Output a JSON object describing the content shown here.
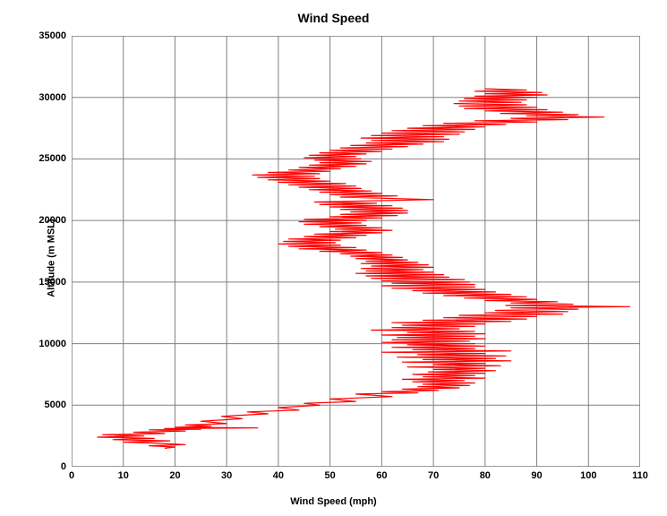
{
  "chart": {
    "type": "line",
    "title": "Wind Speed",
    "title_fontsize": 14,
    "xlabel": "Wind Speed (mph)",
    "ylabel": "Altitude (m MSL)",
    "label_fontsize": 11,
    "tick_fontsize": 11,
    "tick_fontweight": "bold",
    "line_color": "#ff0000",
    "line_width": 1.2,
    "background_color": "#ffffff",
    "plot_border_color": "#808080",
    "plot_border_width": 1.6,
    "grid_color": "#808080",
    "grid_width": 1,
    "xlim": [
      0,
      110
    ],
    "ylim": [
      0,
      35000
    ],
    "xticks": [
      0,
      10,
      20,
      30,
      40,
      50,
      60,
      70,
      80,
      90,
      100,
      110
    ],
    "yticks": [
      0,
      5000,
      10000,
      15000,
      20000,
      25000,
      30000,
      35000
    ],
    "series": [
      {
        "x": 18,
        "y": 1500
      },
      {
        "x": 20,
        "y": 1600
      },
      {
        "x": 15,
        "y": 1700
      },
      {
        "x": 22,
        "y": 1800
      },
      {
        "x": 17,
        "y": 1900
      },
      {
        "x": 10,
        "y": 2000
      },
      {
        "x": 19,
        "y": 2100
      },
      {
        "x": 8,
        "y": 2200
      },
      {
        "x": 16,
        "y": 2300
      },
      {
        "x": 5,
        "y": 2400
      },
      {
        "x": 14,
        "y": 2500
      },
      {
        "x": 6,
        "y": 2600
      },
      {
        "x": 18,
        "y": 2700
      },
      {
        "x": 12,
        "y": 2800
      },
      {
        "x": 22,
        "y": 2900
      },
      {
        "x": 15,
        "y": 3000
      },
      {
        "x": 25,
        "y": 3050
      },
      {
        "x": 18,
        "y": 3100
      },
      {
        "x": 36,
        "y": 3150
      },
      {
        "x": 20,
        "y": 3200
      },
      {
        "x": 27,
        "y": 3300
      },
      {
        "x": 22,
        "y": 3400
      },
      {
        "x": 30,
        "y": 3500
      },
      {
        "x": 25,
        "y": 3700
      },
      {
        "x": 33,
        "y": 3900
      },
      {
        "x": 29,
        "y": 4100
      },
      {
        "x": 38,
        "y": 4300
      },
      {
        "x": 34,
        "y": 4450
      },
      {
        "x": 44,
        "y": 4600
      },
      {
        "x": 40,
        "y": 4800
      },
      {
        "x": 48,
        "y": 5000
      },
      {
        "x": 45,
        "y": 5150
      },
      {
        "x": 55,
        "y": 5300
      },
      {
        "x": 50,
        "y": 5500
      },
      {
        "x": 62,
        "y": 5700
      },
      {
        "x": 55,
        "y": 5900
      },
      {
        "x": 67,
        "y": 6000
      },
      {
        "x": 60,
        "y": 6100
      },
      {
        "x": 71,
        "y": 6200
      },
      {
        "x": 64,
        "y": 6300
      },
      {
        "x": 75,
        "y": 6400
      },
      {
        "x": 67,
        "y": 6500
      },
      {
        "x": 77,
        "y": 6600
      },
      {
        "x": 68,
        "y": 6700
      },
      {
        "x": 78,
        "y": 6800
      },
      {
        "x": 66,
        "y": 6900
      },
      {
        "x": 76,
        "y": 7000
      },
      {
        "x": 64,
        "y": 7100
      },
      {
        "x": 80,
        "y": 7200
      },
      {
        "x": 68,
        "y": 7300
      },
      {
        "x": 78,
        "y": 7400
      },
      {
        "x": 66,
        "y": 7500
      },
      {
        "x": 80,
        "y": 7600
      },
      {
        "x": 69,
        "y": 7700
      },
      {
        "x": 82,
        "y": 7800
      },
      {
        "x": 70,
        "y": 7900
      },
      {
        "x": 80,
        "y": 8000
      },
      {
        "x": 65,
        "y": 8100
      },
      {
        "x": 83,
        "y": 8200
      },
      {
        "x": 70,
        "y": 8300
      },
      {
        "x": 80,
        "y": 8400
      },
      {
        "x": 64,
        "y": 8500
      },
      {
        "x": 85,
        "y": 8600
      },
      {
        "x": 68,
        "y": 8700
      },
      {
        "x": 82,
        "y": 8800
      },
      {
        "x": 63,
        "y": 8900
      },
      {
        "x": 84,
        "y": 9000
      },
      {
        "x": 67,
        "y": 9100
      },
      {
        "x": 80,
        "y": 9200
      },
      {
        "x": 60,
        "y": 9300
      },
      {
        "x": 85,
        "y": 9400
      },
      {
        "x": 66,
        "y": 9500
      },
      {
        "x": 78,
        "y": 9600
      },
      {
        "x": 62,
        "y": 9700
      },
      {
        "x": 80,
        "y": 9800
      },
      {
        "x": 65,
        "y": 9900
      },
      {
        "x": 78,
        "y": 10000
      },
      {
        "x": 60,
        "y": 10100
      },
      {
        "x": 77,
        "y": 10200
      },
      {
        "x": 62,
        "y": 10300
      },
      {
        "x": 80,
        "y": 10400
      },
      {
        "x": 63,
        "y": 10500
      },
      {
        "x": 78,
        "y": 10600
      },
      {
        "x": 60,
        "y": 10700
      },
      {
        "x": 80,
        "y": 10800
      },
      {
        "x": 65,
        "y": 10900
      },
      {
        "x": 78,
        "y": 11000
      },
      {
        "x": 58,
        "y": 11100
      },
      {
        "x": 75,
        "y": 11200
      },
      {
        "x": 62,
        "y": 11300
      },
      {
        "x": 78,
        "y": 11400
      },
      {
        "x": 64,
        "y": 11500
      },
      {
        "x": 80,
        "y": 11600
      },
      {
        "x": 62,
        "y": 11700
      },
      {
        "x": 85,
        "y": 11800
      },
      {
        "x": 68,
        "y": 11900
      },
      {
        "x": 88,
        "y": 12000
      },
      {
        "x": 72,
        "y": 12100
      },
      {
        "x": 90,
        "y": 12200
      },
      {
        "x": 75,
        "y": 12300
      },
      {
        "x": 95,
        "y": 12400
      },
      {
        "x": 80,
        "y": 12500
      },
      {
        "x": 96,
        "y": 12600
      },
      {
        "x": 82,
        "y": 12700
      },
      {
        "x": 98,
        "y": 12800
      },
      {
        "x": 85,
        "y": 12900
      },
      {
        "x": 108,
        "y": 13000
      },
      {
        "x": 84,
        "y": 13100
      },
      {
        "x": 97,
        "y": 13200
      },
      {
        "x": 85,
        "y": 13300
      },
      {
        "x": 94,
        "y": 13400
      },
      {
        "x": 80,
        "y": 13500
      },
      {
        "x": 90,
        "y": 13600
      },
      {
        "x": 76,
        "y": 13700
      },
      {
        "x": 88,
        "y": 13800
      },
      {
        "x": 72,
        "y": 13900
      },
      {
        "x": 85,
        "y": 14000
      },
      {
        "x": 68,
        "y": 14100
      },
      {
        "x": 82,
        "y": 14200
      },
      {
        "x": 66,
        "y": 14300
      },
      {
        "x": 80,
        "y": 14400
      },
      {
        "x": 62,
        "y": 14500
      },
      {
        "x": 78,
        "y": 14600
      },
      {
        "x": 60,
        "y": 14700
      },
      {
        "x": 78,
        "y": 14800
      },
      {
        "x": 62,
        "y": 14900
      },
      {
        "x": 77,
        "y": 15000
      },
      {
        "x": 60,
        "y": 15100
      },
      {
        "x": 76,
        "y": 15200
      },
      {
        "x": 58,
        "y": 15300
      },
      {
        "x": 73,
        "y": 15400
      },
      {
        "x": 57,
        "y": 15500
      },
      {
        "x": 72,
        "y": 15600
      },
      {
        "x": 55,
        "y": 15700
      },
      {
        "x": 70,
        "y": 15800
      },
      {
        "x": 57,
        "y": 15900
      },
      {
        "x": 68,
        "y": 16000
      },
      {
        "x": 56,
        "y": 16100
      },
      {
        "x": 70,
        "y": 16200
      },
      {
        "x": 58,
        "y": 16300
      },
      {
        "x": 69,
        "y": 16400
      },
      {
        "x": 56,
        "y": 16500
      },
      {
        "x": 67,
        "y": 16600
      },
      {
        "x": 57,
        "y": 16700
      },
      {
        "x": 65,
        "y": 16800
      },
      {
        "x": 55,
        "y": 16900
      },
      {
        "x": 64,
        "y": 17000
      },
      {
        "x": 54,
        "y": 17100
      },
      {
        "x": 62,
        "y": 17200
      },
      {
        "x": 52,
        "y": 17300
      },
      {
        "x": 60,
        "y": 17400
      },
      {
        "x": 48,
        "y": 17500
      },
      {
        "x": 57,
        "y": 17600
      },
      {
        "x": 44,
        "y": 17700
      },
      {
        "x": 55,
        "y": 17800
      },
      {
        "x": 42,
        "y": 17900
      },
      {
        "x": 52,
        "y": 18000
      },
      {
        "x": 40,
        "y": 18100
      },
      {
        "x": 51,
        "y": 18200
      },
      {
        "x": 41,
        "y": 18300
      },
      {
        "x": 52,
        "y": 18400
      },
      {
        "x": 42,
        "y": 18500
      },
      {
        "x": 55,
        "y": 18600
      },
      {
        "x": 45,
        "y": 18700
      },
      {
        "x": 57,
        "y": 18800
      },
      {
        "x": 47,
        "y": 18900
      },
      {
        "x": 60,
        "y": 19000
      },
      {
        "x": 50,
        "y": 19100
      },
      {
        "x": 62,
        "y": 19200
      },
      {
        "x": 51,
        "y": 19300
      },
      {
        "x": 60,
        "y": 19400
      },
      {
        "x": 48,
        "y": 19500
      },
      {
        "x": 57,
        "y": 19600
      },
      {
        "x": 45,
        "y": 19700
      },
      {
        "x": 56,
        "y": 19800
      },
      {
        "x": 44,
        "y": 19900
      },
      {
        "x": 57,
        "y": 20000
      },
      {
        "x": 45,
        "y": 20100
      },
      {
        "x": 60,
        "y": 20200
      },
      {
        "x": 50,
        "y": 20300
      },
      {
        "x": 63,
        "y": 20400
      },
      {
        "x": 52,
        "y": 20500
      },
      {
        "x": 65,
        "y": 20600
      },
      {
        "x": 54,
        "y": 20700
      },
      {
        "x": 65,
        "y": 20800
      },
      {
        "x": 52,
        "y": 20900
      },
      {
        "x": 64,
        "y": 21000
      },
      {
        "x": 50,
        "y": 21100
      },
      {
        "x": 62,
        "y": 21200
      },
      {
        "x": 48,
        "y": 21300
      },
      {
        "x": 59,
        "y": 21400
      },
      {
        "x": 47,
        "y": 21500
      },
      {
        "x": 70,
        "y": 21700
      },
      {
        "x": 52,
        "y": 21900
      },
      {
        "x": 63,
        "y": 22000
      },
      {
        "x": 50,
        "y": 22100
      },
      {
        "x": 60,
        "y": 22200
      },
      {
        "x": 48,
        "y": 22300
      },
      {
        "x": 58,
        "y": 22400
      },
      {
        "x": 46,
        "y": 22500
      },
      {
        "x": 56,
        "y": 22600
      },
      {
        "x": 44,
        "y": 22700
      },
      {
        "x": 55,
        "y": 22800
      },
      {
        "x": 42,
        "y": 22900
      },
      {
        "x": 53,
        "y": 23000
      },
      {
        "x": 40,
        "y": 23100
      },
      {
        "x": 50,
        "y": 23200
      },
      {
        "x": 38,
        "y": 23300
      },
      {
        "x": 48,
        "y": 23400
      },
      {
        "x": 36,
        "y": 23500
      },
      {
        "x": 47,
        "y": 23600
      },
      {
        "x": 35,
        "y": 23700
      },
      {
        "x": 48,
        "y": 23800
      },
      {
        "x": 38,
        "y": 23900
      },
      {
        "x": 50,
        "y": 24000
      },
      {
        "x": 42,
        "y": 24100
      },
      {
        "x": 52,
        "y": 24200
      },
      {
        "x": 44,
        "y": 24300
      },
      {
        "x": 55,
        "y": 24400
      },
      {
        "x": 46,
        "y": 24500
      },
      {
        "x": 57,
        "y": 24600
      },
      {
        "x": 48,
        "y": 24700
      },
      {
        "x": 58,
        "y": 24800
      },
      {
        "x": 47,
        "y": 24900
      },
      {
        "x": 56,
        "y": 25000
      },
      {
        "x": 45,
        "y": 25100
      },
      {
        "x": 55,
        "y": 25200
      },
      {
        "x": 46,
        "y": 25300
      },
      {
        "x": 57,
        "y": 25400
      },
      {
        "x": 48,
        "y": 25500
      },
      {
        "x": 60,
        "y": 25600
      },
      {
        "x": 50,
        "y": 25700
      },
      {
        "x": 62,
        "y": 25800
      },
      {
        "x": 52,
        "y": 25900
      },
      {
        "x": 65,
        "y": 26000
      },
      {
        "x": 54,
        "y": 26100
      },
      {
        "x": 68,
        "y": 26200
      },
      {
        "x": 57,
        "y": 26300
      },
      {
        "x": 72,
        "y": 26400
      },
      {
        "x": 58,
        "y": 26500
      },
      {
        "x": 73,
        "y": 26600
      },
      {
        "x": 56,
        "y": 26700
      },
      {
        "x": 72,
        "y": 26800
      },
      {
        "x": 58,
        "y": 26900
      },
      {
        "x": 75,
        "y": 27000
      },
      {
        "x": 60,
        "y": 27100
      },
      {
        "x": 76,
        "y": 27200
      },
      {
        "x": 62,
        "y": 27300
      },
      {
        "x": 78,
        "y": 27400
      },
      {
        "x": 65,
        "y": 27500
      },
      {
        "x": 80,
        "y": 27600
      },
      {
        "x": 68,
        "y": 27700
      },
      {
        "x": 84,
        "y": 27800
      },
      {
        "x": 72,
        "y": 27900
      },
      {
        "x": 90,
        "y": 28000
      },
      {
        "x": 78,
        "y": 28100
      },
      {
        "x": 96,
        "y": 28200
      },
      {
        "x": 85,
        "y": 28300
      },
      {
        "x": 103,
        "y": 28400
      },
      {
        "x": 88,
        "y": 28500
      },
      {
        "x": 98,
        "y": 28600
      },
      {
        "x": 83,
        "y": 28700
      },
      {
        "x": 95,
        "y": 28800
      },
      {
        "x": 80,
        "y": 28900
      },
      {
        "x": 92,
        "y": 29000
      },
      {
        "x": 76,
        "y": 29100
      },
      {
        "x": 90,
        "y": 29200
      },
      {
        "x": 75,
        "y": 29300
      },
      {
        "x": 88,
        "y": 29400
      },
      {
        "x": 74,
        "y": 29500
      },
      {
        "x": 87,
        "y": 29600
      },
      {
        "x": 75,
        "y": 29700
      },
      {
        "x": 88,
        "y": 29800
      },
      {
        "x": 76,
        "y": 29900
      },
      {
        "x": 90,
        "y": 30000
      },
      {
        "x": 78,
        "y": 30100
      },
      {
        "x": 92,
        "y": 30200
      },
      {
        "x": 80,
        "y": 30300
      },
      {
        "x": 91,
        "y": 30400
      },
      {
        "x": 78,
        "y": 30500
      },
      {
        "x": 88,
        "y": 30600
      },
      {
        "x": 80,
        "y": 30700
      }
    ]
  }
}
